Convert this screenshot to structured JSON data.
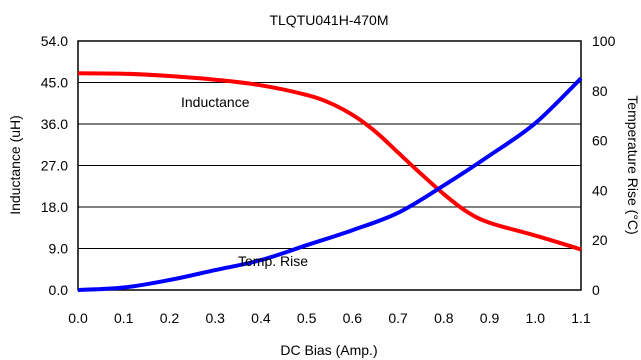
{
  "chart_data": {
    "type": "line",
    "title": "TLQTU041H-470M",
    "xlabel": "DC Bias (Amp.)",
    "ylabel_left": "Inductance (uH)",
    "ylabel_right": "Temperature Rise (°C)",
    "xlim": [
      0,
      1.1
    ],
    "ylim_left": [
      0,
      54
    ],
    "ylim_right": [
      0,
      100
    ],
    "x_ticks": [
      "0.0",
      "0.1",
      "0.2",
      "0.3",
      "0.4",
      "0.5",
      "0.6",
      "0.7",
      "0.8",
      "0.9",
      "1.0",
      "1.1"
    ],
    "y_left_ticks": [
      "0.0",
      "9.0",
      "18.0",
      "27.0",
      "36.0",
      "45.0",
      "54.0"
    ],
    "y_right_ticks": [
      "0",
      "20",
      "40",
      "60",
      "80",
      "100"
    ],
    "grid": "horizontal",
    "series": [
      {
        "name": "Inductance",
        "axis": "left",
        "color": "#ff0000",
        "x": [
          0,
          0.1,
          0.2,
          0.3,
          0.4,
          0.5,
          0.55,
          0.6,
          0.65,
          0.7,
          0.75,
          0.8,
          0.85,
          0.9,
          1.0,
          1.1
        ],
        "y": [
          47.0,
          46.9,
          46.4,
          45.6,
          44.4,
          42.3,
          40.6,
          38.0,
          34.4,
          29.8,
          25.2,
          20.8,
          17.0,
          14.6,
          11.8,
          8.8
        ]
      },
      {
        "name": "Temp. Rise",
        "axis": "right",
        "color": "#0000ff",
        "x": [
          0,
          0.1,
          0.2,
          0.3,
          0.4,
          0.5,
          0.6,
          0.7,
          0.8,
          0.9,
          1.0,
          1.1
        ],
        "y": [
          0,
          1,
          4,
          8,
          12,
          18,
          24,
          31,
          42,
          54,
          67,
          85
        ]
      }
    ],
    "annotations": [
      "Inductance",
      "Temp. Rise"
    ]
  }
}
